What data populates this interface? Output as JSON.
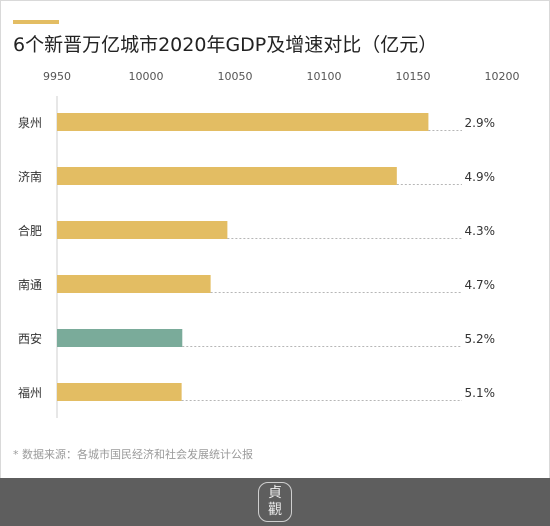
{
  "title": "6个新晋万亿城市2020年GDP及增速对比（亿元）",
  "source": "* 数据来源：各城市国民经济和社会发展统计公报",
  "logo_text": "貞觀",
  "colors": {
    "accent": "#e3bd63",
    "bar_default": "#e3bd63",
    "bar_highlight": "#7aab9a",
    "footer": "#5e5e5e"
  },
  "chart_data": {
    "type": "bar",
    "orientation": "horizontal",
    "categories": [
      "泉州",
      "济南",
      "合肥",
      "南通",
      "西安",
      "福州"
    ],
    "values": [
      10158.66,
      10140.91,
      10045.72,
      10036.31,
      10020.39,
      10020.02
    ],
    "growth_labels": [
      "2.9%",
      "4.9%",
      "4.3%",
      "4.7%",
      "5.2%",
      "5.1%"
    ],
    "highlight": "西安",
    "xlim": [
      9950,
      10200
    ],
    "xticks": [
      "9950",
      "10000",
      "10050",
      "10100",
      "10150",
      "10200"
    ],
    "grid": false
  }
}
